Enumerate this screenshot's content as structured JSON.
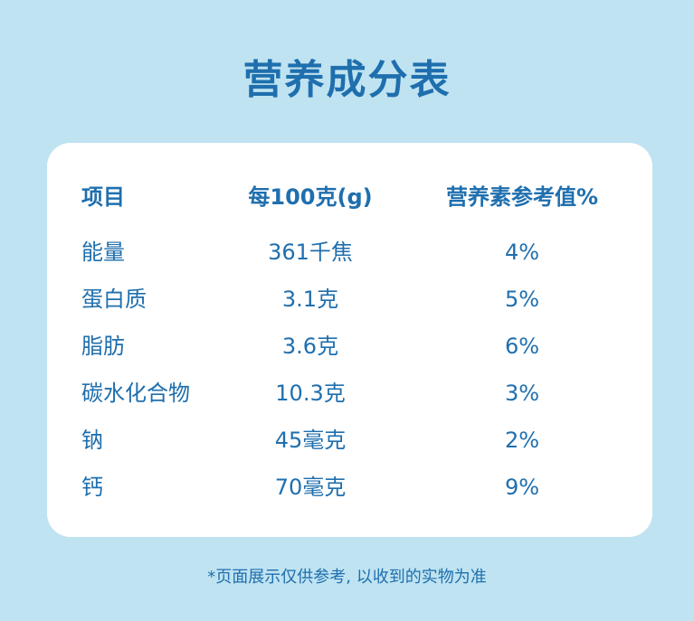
{
  "title": "营养成分表",
  "table": {
    "headers": [
      "项目",
      "每100克(g)",
      "营养素参考值%"
    ],
    "rows": [
      [
        "能量",
        "361千焦",
        "4%"
      ],
      [
        "蛋白质",
        "3.1克",
        "5%"
      ],
      [
        "脂肪",
        "3.6克",
        "6%"
      ],
      [
        "碳水化合物",
        "10.3克",
        "3%"
      ],
      [
        "钠",
        "45毫克",
        "2%"
      ],
      [
        "钙",
        "70毫克",
        "9%"
      ]
    ]
  },
  "note": "*页面展示仅供参考, 以收到的实物为准",
  "colors": {
    "background": "#bfe3f1",
    "text": "#1f6fae",
    "card": "#ffffff"
  }
}
